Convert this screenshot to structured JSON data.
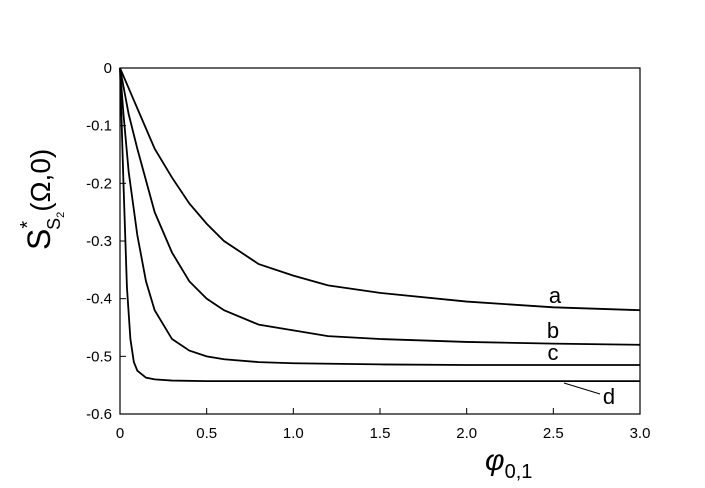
{
  "chart_data": {
    "type": "line",
    "x_label": {
      "base": "φ",
      "sub": "0,1"
    },
    "y_label": {
      "base": "S",
      "sup": "*",
      "sub": "S",
      "subsub": "2",
      "rest": "(Ω,0)"
    },
    "xlim": [
      0,
      3
    ],
    "ylim": [
      -0.6,
      0
    ],
    "xticks": [
      0,
      0.5,
      {
        "value": 1,
        "label": "1.0"
      },
      1.5,
      {
        "value": 2,
        "label": "2.0"
      },
      2.5,
      {
        "value": 3,
        "label": "3.0"
      }
    ],
    "yticks": [
      0,
      -0.1,
      -0.2,
      -0.3,
      -0.4,
      -0.5,
      -0.6
    ],
    "series": [
      {
        "name": "a",
        "color": "#000000",
        "x": [
          0,
          0.05,
          0.1,
          0.2,
          0.3,
          0.4,
          0.5,
          0.6,
          0.8,
          1.0,
          1.2,
          1.5,
          2.0,
          2.5,
          3.0
        ],
        "values": [
          0,
          -0.035,
          -0.07,
          -0.14,
          -0.19,
          -0.235,
          -0.27,
          -0.3,
          -0.34,
          -0.36,
          -0.377,
          -0.39,
          -0.405,
          -0.415,
          -0.42
        ]
      },
      {
        "name": "b",
        "color": "#000000",
        "x": [
          0,
          0.05,
          0.1,
          0.2,
          0.3,
          0.4,
          0.5,
          0.6,
          0.8,
          1.0,
          1.2,
          1.5,
          2.0,
          2.5,
          3.0
        ],
        "values": [
          0,
          -0.08,
          -0.14,
          -0.25,
          -0.32,
          -0.37,
          -0.4,
          -0.42,
          -0.445,
          -0.455,
          -0.465,
          -0.47,
          -0.475,
          -0.478,
          -0.48
        ]
      },
      {
        "name": "c",
        "color": "#000000",
        "x": [
          0,
          0.02,
          0.05,
          0.1,
          0.15,
          0.2,
          0.3,
          0.4,
          0.5,
          0.6,
          0.8,
          1.0,
          1.5,
          2.0,
          3.0
        ],
        "values": [
          0,
          -0.08,
          -0.18,
          -0.29,
          -0.37,
          -0.42,
          -0.47,
          -0.49,
          -0.5,
          -0.505,
          -0.51,
          -0.512,
          -0.514,
          -0.515,
          -0.515
        ]
      },
      {
        "name": "d",
        "color": "#000000",
        "x": [
          0,
          0.02,
          0.04,
          0.06,
          0.08,
          0.1,
          0.15,
          0.2,
          0.3,
          0.5,
          1.0,
          2.0,
          3.0
        ],
        "values": [
          0,
          -0.2,
          -0.38,
          -0.47,
          -0.51,
          -0.525,
          -0.537,
          -0.54,
          -0.542,
          -0.543,
          -0.543,
          -0.543,
          -0.543
        ]
      }
    ]
  }
}
